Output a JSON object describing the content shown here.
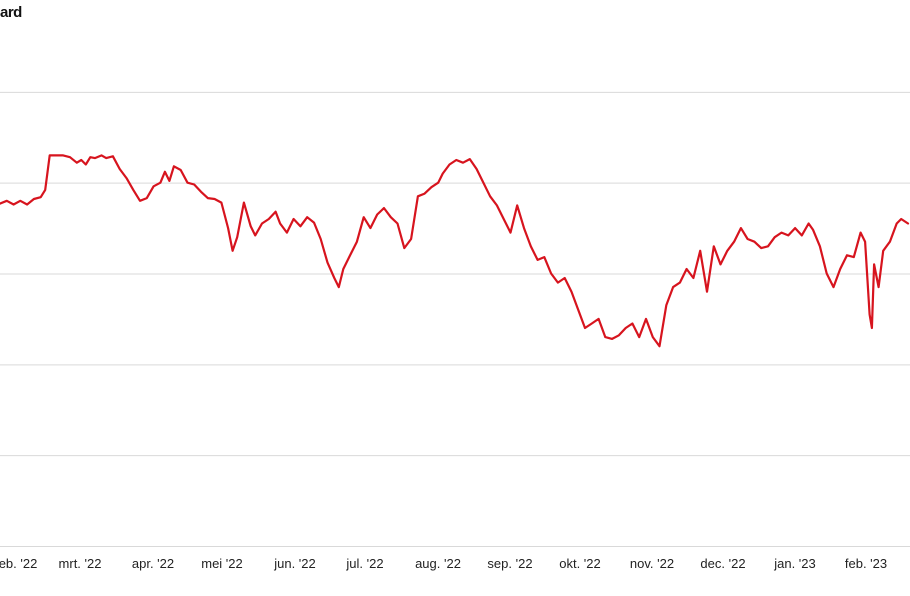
{
  "title": "ard",
  "accent_color": "#d7141e",
  "chart_data": {
    "type": "line",
    "title": "ard",
    "xlabel": "",
    "ylabel": "",
    "y_tick_labels": [],
    "grid": true,
    "x_tick_labels": [
      "eb. '22",
      "mrt. '22",
      "apr. '22",
      "mei '22",
      "jun. '22",
      "jul. '22",
      "aug. '22",
      "sep. '22",
      "okt. '22",
      "nov. '22",
      "dec. '22",
      "jan. '23",
      "feb. '23"
    ],
    "x_range": [
      "2022-01-22",
      "2023-02-28"
    ],
    "ylim": [
      0,
      6
    ],
    "series": [
      {
        "color": "#d7141e",
        "points": [
          [
            "2022-01-22",
            3.77
          ],
          [
            "2022-01-25",
            3.8
          ],
          [
            "2022-01-28",
            3.76
          ],
          [
            "2022-01-31",
            3.8
          ],
          [
            "2022-02-03",
            3.76
          ],
          [
            "2022-02-06",
            3.82
          ],
          [
            "2022-02-09",
            3.84
          ],
          [
            "2022-02-11",
            3.92
          ],
          [
            "2022-02-13",
            4.3
          ],
          [
            "2022-02-16",
            4.3
          ],
          [
            "2022-02-19",
            4.3
          ],
          [
            "2022-02-22",
            4.28
          ],
          [
            "2022-02-25",
            4.22
          ],
          [
            "2022-02-27",
            4.25
          ],
          [
            "2022-03-01",
            4.2
          ],
          [
            "2022-03-03",
            4.28
          ],
          [
            "2022-03-05",
            4.27
          ],
          [
            "2022-03-08",
            4.3
          ],
          [
            "2022-03-10",
            4.27
          ],
          [
            "2022-03-13",
            4.29
          ],
          [
            "2022-03-16",
            4.15
          ],
          [
            "2022-03-19",
            4.05
          ],
          [
            "2022-03-22",
            3.92
          ],
          [
            "2022-03-25",
            3.8
          ],
          [
            "2022-03-28",
            3.83
          ],
          [
            "2022-03-31",
            3.96
          ],
          [
            "2022-04-03",
            4.0
          ],
          [
            "2022-04-05",
            4.12
          ],
          [
            "2022-04-07",
            4.02
          ],
          [
            "2022-04-09",
            4.18
          ],
          [
            "2022-04-12",
            4.14
          ],
          [
            "2022-04-15",
            4.0
          ],
          [
            "2022-04-18",
            3.98
          ],
          [
            "2022-04-21",
            3.9
          ],
          [
            "2022-04-24",
            3.83
          ],
          [
            "2022-04-27",
            3.82
          ],
          [
            "2022-04-30",
            3.78
          ],
          [
            "2022-05-03",
            3.5
          ],
          [
            "2022-05-05",
            3.25
          ],
          [
            "2022-05-07",
            3.4
          ],
          [
            "2022-05-10",
            3.78
          ],
          [
            "2022-05-13",
            3.52
          ],
          [
            "2022-05-15",
            3.42
          ],
          [
            "2022-05-18",
            3.55
          ],
          [
            "2022-05-21",
            3.6
          ],
          [
            "2022-05-24",
            3.68
          ],
          [
            "2022-05-26",
            3.55
          ],
          [
            "2022-05-29",
            3.45
          ],
          [
            "2022-06-01",
            3.6
          ],
          [
            "2022-06-04",
            3.52
          ],
          [
            "2022-06-07",
            3.62
          ],
          [
            "2022-06-10",
            3.56
          ],
          [
            "2022-06-13",
            3.38
          ],
          [
            "2022-06-16",
            3.12
          ],
          [
            "2022-06-19",
            2.95
          ],
          [
            "2022-06-21",
            2.85
          ],
          [
            "2022-06-23",
            3.05
          ],
          [
            "2022-06-26",
            3.2
          ],
          [
            "2022-06-29",
            3.35
          ],
          [
            "2022-07-02",
            3.62
          ],
          [
            "2022-07-05",
            3.5
          ],
          [
            "2022-07-08",
            3.65
          ],
          [
            "2022-07-11",
            3.72
          ],
          [
            "2022-07-14",
            3.62
          ],
          [
            "2022-07-17",
            3.55
          ],
          [
            "2022-07-20",
            3.28
          ],
          [
            "2022-07-23",
            3.38
          ],
          [
            "2022-07-26",
            3.85
          ],
          [
            "2022-07-29",
            3.88
          ],
          [
            "2022-08-01",
            3.95
          ],
          [
            "2022-08-04",
            4.0
          ],
          [
            "2022-08-06",
            4.1
          ],
          [
            "2022-08-09",
            4.2
          ],
          [
            "2022-08-12",
            4.25
          ],
          [
            "2022-08-15",
            4.22
          ],
          [
            "2022-08-18",
            4.26
          ],
          [
            "2022-08-21",
            4.15
          ],
          [
            "2022-08-24",
            4.0
          ],
          [
            "2022-08-27",
            3.85
          ],
          [
            "2022-08-30",
            3.75
          ],
          [
            "2022-09-02",
            3.6
          ],
          [
            "2022-09-05",
            3.45
          ],
          [
            "2022-09-08",
            3.75
          ],
          [
            "2022-09-11",
            3.5
          ],
          [
            "2022-09-14",
            3.3
          ],
          [
            "2022-09-17",
            3.15
          ],
          [
            "2022-09-20",
            3.18
          ],
          [
            "2022-09-23",
            3.0
          ],
          [
            "2022-09-26",
            2.9
          ],
          [
            "2022-09-29",
            2.95
          ],
          [
            "2022-10-02",
            2.8
          ],
          [
            "2022-10-05",
            2.6
          ],
          [
            "2022-10-08",
            2.4
          ],
          [
            "2022-10-11",
            2.45
          ],
          [
            "2022-10-14",
            2.5
          ],
          [
            "2022-10-17",
            2.3
          ],
          [
            "2022-10-20",
            2.28
          ],
          [
            "2022-10-23",
            2.32
          ],
          [
            "2022-10-26",
            2.4
          ],
          [
            "2022-10-29",
            2.45
          ],
          [
            "2022-11-01",
            2.3
          ],
          [
            "2022-11-04",
            2.5
          ],
          [
            "2022-11-07",
            2.3
          ],
          [
            "2022-11-10",
            2.2
          ],
          [
            "2022-11-13",
            2.65
          ],
          [
            "2022-11-16",
            2.85
          ],
          [
            "2022-11-19",
            2.9
          ],
          [
            "2022-11-22",
            3.05
          ],
          [
            "2022-11-25",
            2.95
          ],
          [
            "2022-11-28",
            3.25
          ],
          [
            "2022-12-01",
            2.8
          ],
          [
            "2022-12-04",
            3.3
          ],
          [
            "2022-12-07",
            3.1
          ],
          [
            "2022-12-10",
            3.25
          ],
          [
            "2022-12-13",
            3.35
          ],
          [
            "2022-12-16",
            3.5
          ],
          [
            "2022-12-19",
            3.38
          ],
          [
            "2022-12-22",
            3.35
          ],
          [
            "2022-12-25",
            3.28
          ],
          [
            "2022-12-28",
            3.3
          ],
          [
            "2022-12-31",
            3.4
          ],
          [
            "2023-01-03",
            3.45
          ],
          [
            "2023-01-06",
            3.42
          ],
          [
            "2023-01-09",
            3.5
          ],
          [
            "2023-01-12",
            3.42
          ],
          [
            "2023-01-15",
            3.55
          ],
          [
            "2023-01-17",
            3.48
          ],
          [
            "2023-01-20",
            3.3
          ],
          [
            "2023-01-23",
            3.0
          ],
          [
            "2023-01-26",
            2.85
          ],
          [
            "2023-01-29",
            3.05
          ],
          [
            "2023-02-01",
            3.2
          ],
          [
            "2023-02-04",
            3.18
          ],
          [
            "2023-02-07",
            3.45
          ],
          [
            "2023-02-09",
            3.35
          ],
          [
            "2023-02-11",
            2.55
          ],
          [
            "2023-02-12",
            2.4
          ],
          [
            "2023-02-13",
            3.1
          ],
          [
            "2023-02-15",
            2.85
          ],
          [
            "2023-02-17",
            3.25
          ],
          [
            "2023-02-20",
            3.35
          ],
          [
            "2023-02-23",
            3.55
          ],
          [
            "2023-02-25",
            3.6
          ],
          [
            "2023-02-28",
            3.55
          ]
        ]
      }
    ]
  }
}
